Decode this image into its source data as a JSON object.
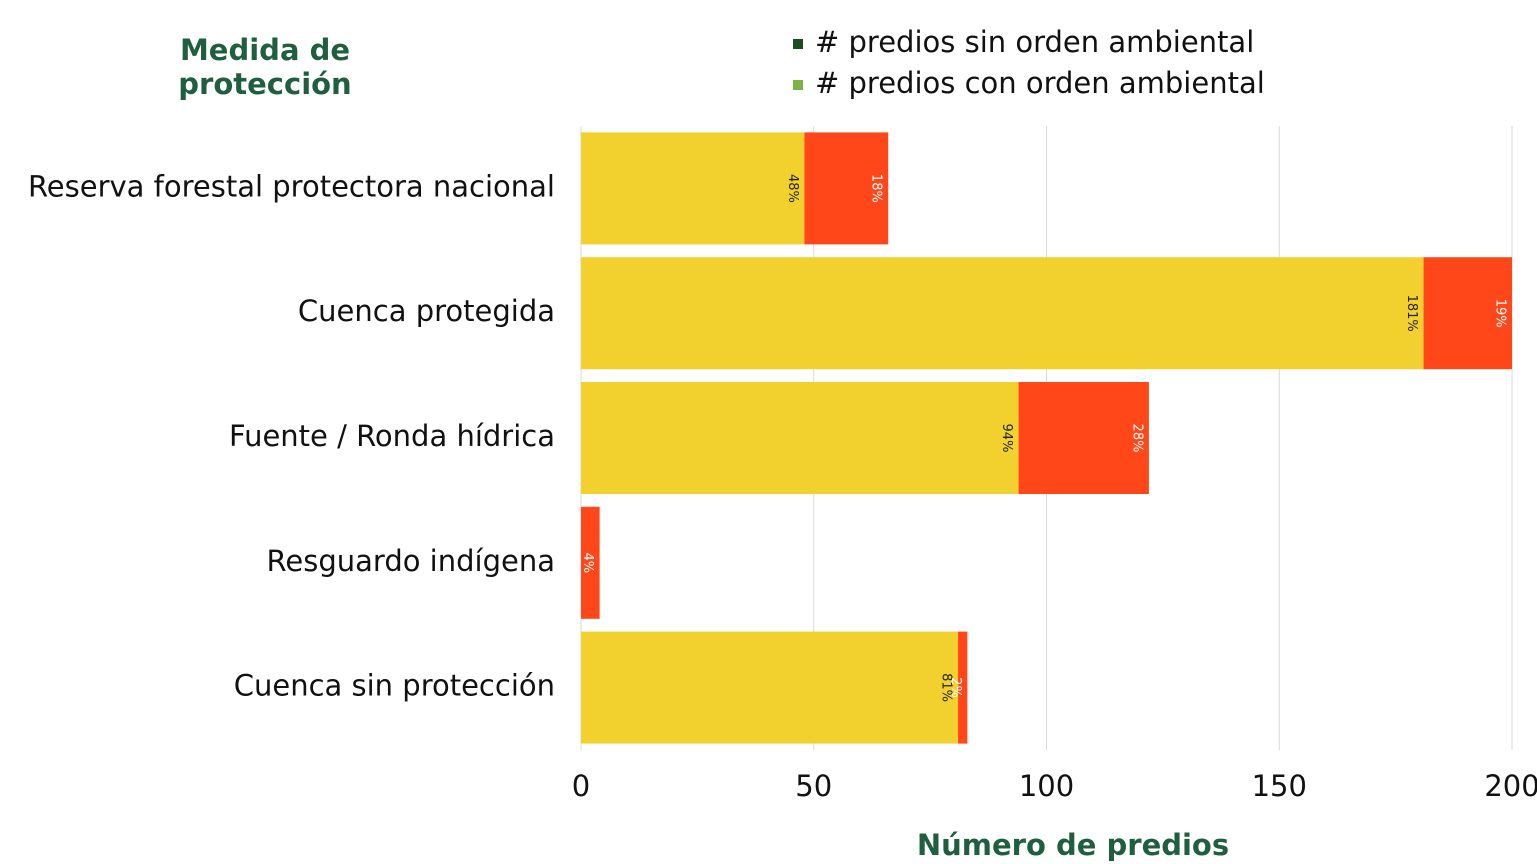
{
  "chart_data": {
    "type": "stacked_barh",
    "y_axis_title": "Medida de protección",
    "x_axis_title": "Número de predios",
    "categories": [
      "Reserva forestal protectora nacional",
      "Cuenca protegida",
      "Fuente / Ronda hídrica",
      "Resguardo indígena",
      "Cuenca sin protección"
    ],
    "series": [
      {
        "name": "# predios sin orden ambiental",
        "legend_color": "#1b4d1e",
        "color": "#f2d02e",
        "label_color": "#222222",
        "values": [
          48,
          181,
          94,
          0,
          81
        ],
        "value_labels": [
          "48%",
          "181%",
          "94%",
          null,
          "81%"
        ]
      },
      {
        "name": "# predios con orden ambiental",
        "legend_color": "#7cb342",
        "color": "#ff4719",
        "label_color": "#ffffff",
        "values": [
          18,
          19,
          28,
          4,
          2
        ],
        "value_labels": [
          "18%",
          "19%",
          "28%",
          "4%",
          "2%"
        ]
      }
    ],
    "xlim": [
      0,
      200
    ],
    "xticks": [
      0,
      50,
      100,
      150,
      200
    ],
    "grid": true,
    "legend": "top"
  }
}
